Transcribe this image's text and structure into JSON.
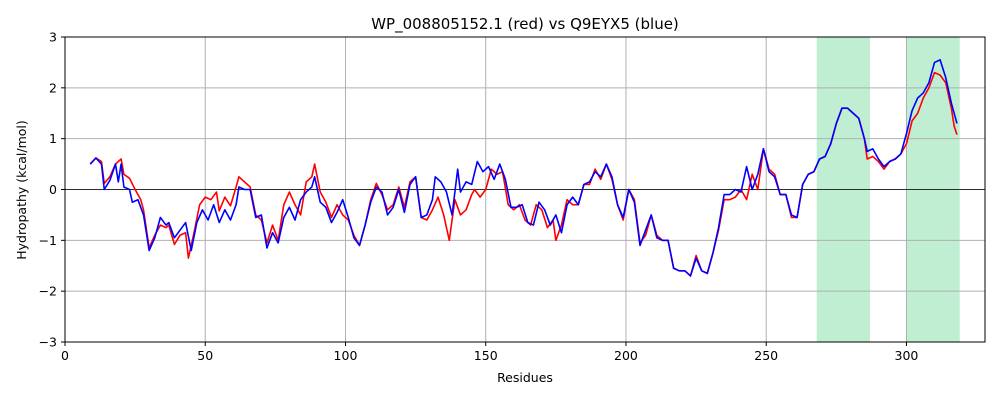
{
  "chart_data": {
    "type": "line",
    "title": "WP_008805152.1 (red) vs Q9EYX5 (blue)",
    "xlabel": "Residues",
    "ylabel": "Hydropathy (kcal/mol)",
    "xlim": [
      0,
      328
    ],
    "ylim": [
      -3,
      3
    ],
    "xticks": [
      0,
      50,
      100,
      150,
      200,
      250,
      300
    ],
    "yticks": [
      -3,
      -2,
      -1,
      0,
      1,
      2,
      3
    ],
    "grid": true,
    "zero_line": true,
    "colors": {
      "red": "#ff0000",
      "blue": "#0000ff",
      "highlight": "#c0eed3",
      "grid": "#b0b0b0"
    },
    "highlights": [
      {
        "x0": 268,
        "x1": 287
      },
      {
        "x0": 300,
        "x1": 319
      }
    ],
    "series": [
      {
        "color": "#ff0000",
        "points": [
          [
            9,
            0.5
          ],
          [
            11,
            0.62
          ],
          [
            13,
            0.55
          ],
          [
            14,
            0.12
          ],
          [
            16,
            0.25
          ],
          [
            18,
            0.5
          ],
          [
            20,
            0.6
          ],
          [
            21,
            0.3
          ],
          [
            23,
            0.22
          ],
          [
            25,
            0.0
          ],
          [
            27,
            -0.2
          ],
          [
            28,
            -0.4
          ],
          [
            30,
            -1.15
          ],
          [
            32,
            -0.9
          ],
          [
            34,
            -0.7
          ],
          [
            36,
            -0.75
          ],
          [
            37,
            -0.7
          ],
          [
            39,
            -1.08
          ],
          [
            41,
            -0.9
          ],
          [
            43,
            -0.85
          ],
          [
            44,
            -1.35
          ],
          [
            46,
            -0.85
          ],
          [
            48,
            -0.3
          ],
          [
            50,
            -0.15
          ],
          [
            52,
            -0.2
          ],
          [
            54,
            -0.05
          ],
          [
            55,
            -0.42
          ],
          [
            57,
            -0.15
          ],
          [
            59,
            -0.32
          ],
          [
            61,
            0.05
          ],
          [
            62,
            0.25
          ],
          [
            64,
            0.15
          ],
          [
            66,
            0.05
          ],
          [
            68,
            -0.5
          ],
          [
            70,
            -0.6
          ],
          [
            72,
            -1.05
          ],
          [
            74,
            -0.7
          ],
          [
            76,
            -1.0
          ],
          [
            78,
            -0.3
          ],
          [
            80,
            -0.05
          ],
          [
            82,
            -0.3
          ],
          [
            84,
            -0.5
          ],
          [
            86,
            0.15
          ],
          [
            88,
            0.25
          ],
          [
            89,
            0.5
          ],
          [
            91,
            -0.05
          ],
          [
            93,
            -0.25
          ],
          [
            95,
            -0.55
          ],
          [
            97,
            -0.3
          ],
          [
            99,
            -0.5
          ],
          [
            101,
            -0.6
          ],
          [
            103,
            -0.9
          ],
          [
            105,
            -1.1
          ],
          [
            107,
            -0.7
          ],
          [
            109,
            -0.2
          ],
          [
            111,
            0.12
          ],
          [
            113,
            -0.1
          ],
          [
            115,
            -0.4
          ],
          [
            117,
            -0.3
          ],
          [
            119,
            0.05
          ],
          [
            121,
            -0.35
          ],
          [
            123,
            0.15
          ],
          [
            125,
            0.25
          ],
          [
            127,
            -0.55
          ],
          [
            129,
            -0.6
          ],
          [
            131,
            -0.4
          ],
          [
            133,
            -0.15
          ],
          [
            135,
            -0.5
          ],
          [
            137,
            -1.0
          ],
          [
            139,
            -0.2
          ],
          [
            141,
            -0.5
          ],
          [
            143,
            -0.4
          ],
          [
            145,
            -0.1
          ],
          [
            146,
            0.0
          ],
          [
            148,
            -0.15
          ],
          [
            150,
            0.0
          ],
          [
            152,
            0.4
          ],
          [
            154,
            0.3
          ],
          [
            156,
            0.35
          ],
          [
            158,
            -0.3
          ],
          [
            160,
            -0.4
          ],
          [
            162,
            -0.3
          ],
          [
            164,
            -0.6
          ],
          [
            166,
            -0.7
          ],
          [
            168,
            -0.3
          ],
          [
            170,
            -0.4
          ],
          [
            172,
            -0.75
          ],
          [
            174,
            -0.6
          ],
          [
            175,
            -1.0
          ],
          [
            177,
            -0.7
          ],
          [
            179,
            -0.2
          ],
          [
            181,
            -0.3
          ],
          [
            183,
            -0.3
          ],
          [
            185,
            0.1
          ],
          [
            187,
            0.1
          ],
          [
            189,
            0.4
          ],
          [
            191,
            0.2
          ],
          [
            193,
            0.5
          ],
          [
            195,
            0.2
          ],
          [
            197,
            -0.3
          ],
          [
            199,
            -0.6
          ],
          [
            201,
            0.0
          ],
          [
            203,
            -0.2
          ],
          [
            205,
            -1.05
          ],
          [
            207,
            -0.9
          ],
          [
            209,
            -0.5
          ],
          [
            211,
            -0.9
          ],
          [
            213,
            -1.0
          ],
          [
            215,
            -1.0
          ],
          [
            217,
            -1.55
          ],
          [
            219,
            -1.6
          ],
          [
            221,
            -1.6
          ],
          [
            223,
            -1.7
          ],
          [
            225,
            -1.3
          ],
          [
            227,
            -1.6
          ],
          [
            229,
            -1.65
          ],
          [
            231,
            -1.25
          ],
          [
            233,
            -0.8
          ],
          [
            235,
            -0.2
          ],
          [
            237,
            -0.2
          ],
          [
            239,
            -0.15
          ],
          [
            241,
            0.0
          ],
          [
            243,
            -0.2
          ],
          [
            245,
            0.3
          ],
          [
            247,
            0.0
          ],
          [
            249,
            0.8
          ],
          [
            251,
            0.4
          ],
          [
            253,
            0.3
          ],
          [
            255,
            -0.1
          ],
          [
            257,
            -0.1
          ],
          [
            259,
            -0.55
          ],
          [
            261,
            -0.55
          ],
          [
            263,
            0.1
          ],
          [
            265,
            0.3
          ],
          [
            267,
            0.35
          ],
          [
            269,
            0.6
          ],
          [
            271,
            0.65
          ],
          [
            273,
            0.9
          ],
          [
            275,
            1.3
          ],
          [
            277,
            1.6
          ],
          [
            279,
            1.6
          ],
          [
            281,
            1.5
          ],
          [
            283,
            1.4
          ],
          [
            285,
            1.0
          ],
          [
            286,
            0.6
          ],
          [
            288,
            0.65
          ],
          [
            290,
            0.55
          ],
          [
            292,
            0.4
          ],
          [
            294,
            0.55
          ],
          [
            296,
            0.6
          ],
          [
            298,
            0.7
          ],
          [
            300,
            0.9
          ],
          [
            302,
            1.35
          ],
          [
            304,
            1.5
          ],
          [
            306,
            1.8
          ],
          [
            308,
            2.0
          ],
          [
            310,
            2.3
          ],
          [
            312,
            2.25
          ],
          [
            314,
            2.1
          ],
          [
            316,
            1.6
          ],
          [
            317,
            1.25
          ],
          [
            318,
            1.08
          ]
        ]
      },
      {
        "color": "#0000ff",
        "points": [
          [
            9,
            0.5
          ],
          [
            11,
            0.62
          ],
          [
            13,
            0.5
          ],
          [
            14,
            0.0
          ],
          [
            16,
            0.18
          ],
          [
            18,
            0.5
          ],
          [
            19,
            0.15
          ],
          [
            20,
            0.5
          ],
          [
            21,
            0.05
          ],
          [
            23,
            0.0
          ],
          [
            24,
            -0.25
          ],
          [
            26,
            -0.2
          ],
          [
            28,
            -0.5
          ],
          [
            30,
            -1.2
          ],
          [
            32,
            -0.95
          ],
          [
            34,
            -0.55
          ],
          [
            36,
            -0.7
          ],
          [
            37,
            -0.65
          ],
          [
            39,
            -0.95
          ],
          [
            41,
            -0.8
          ],
          [
            43,
            -0.65
          ],
          [
            45,
            -1.2
          ],
          [
            47,
            -0.65
          ],
          [
            49,
            -0.4
          ],
          [
            51,
            -0.6
          ],
          [
            53,
            -0.3
          ],
          [
            55,
            -0.65
          ],
          [
            57,
            -0.4
          ],
          [
            59,
            -0.6
          ],
          [
            61,
            -0.3
          ],
          [
            62,
            0.05
          ],
          [
            64,
            0.0
          ],
          [
            66,
            0.0
          ],
          [
            68,
            -0.55
          ],
          [
            70,
            -0.5
          ],
          [
            72,
            -1.15
          ],
          [
            74,
            -0.85
          ],
          [
            76,
            -1.05
          ],
          [
            78,
            -0.55
          ],
          [
            80,
            -0.35
          ],
          [
            82,
            -0.6
          ],
          [
            84,
            -0.2
          ],
          [
            86,
            -0.05
          ],
          [
            88,
            0.05
          ],
          [
            89,
            0.25
          ],
          [
            91,
            -0.25
          ],
          [
            93,
            -0.35
          ],
          [
            95,
            -0.65
          ],
          [
            97,
            -0.45
          ],
          [
            99,
            -0.2
          ],
          [
            101,
            -0.55
          ],
          [
            103,
            -0.95
          ],
          [
            105,
            -1.1
          ],
          [
            107,
            -0.7
          ],
          [
            109,
            -0.25
          ],
          [
            111,
            0.05
          ],
          [
            113,
            -0.05
          ],
          [
            115,
            -0.5
          ],
          [
            117,
            -0.35
          ],
          [
            119,
            0.0
          ],
          [
            121,
            -0.45
          ],
          [
            123,
            0.1
          ],
          [
            125,
            0.25
          ],
          [
            127,
            -0.55
          ],
          [
            129,
            -0.5
          ],
          [
            131,
            -0.2
          ],
          [
            132,
            0.25
          ],
          [
            134,
            0.15
          ],
          [
            136,
            -0.05
          ],
          [
            138,
            -0.5
          ],
          [
            140,
            0.4
          ],
          [
            141,
            -0.05
          ],
          [
            143,
            0.15
          ],
          [
            145,
            0.1
          ],
          [
            147,
            0.55
          ],
          [
            149,
            0.35
          ],
          [
            151,
            0.45
          ],
          [
            153,
            0.2
          ],
          [
            155,
            0.5
          ],
          [
            157,
            0.2
          ],
          [
            159,
            -0.35
          ],
          [
            161,
            -0.35
          ],
          [
            163,
            -0.3
          ],
          [
            165,
            -0.65
          ],
          [
            167,
            -0.7
          ],
          [
            169,
            -0.25
          ],
          [
            171,
            -0.4
          ],
          [
            173,
            -0.7
          ],
          [
            175,
            -0.5
          ],
          [
            177,
            -0.85
          ],
          [
            179,
            -0.3
          ],
          [
            181,
            -0.15
          ],
          [
            183,
            -0.3
          ],
          [
            185,
            0.1
          ],
          [
            187,
            0.15
          ],
          [
            189,
            0.35
          ],
          [
            191,
            0.25
          ],
          [
            193,
            0.5
          ],
          [
            195,
            0.25
          ],
          [
            197,
            -0.3
          ],
          [
            199,
            -0.55
          ],
          [
            201,
            0.0
          ],
          [
            203,
            -0.25
          ],
          [
            205,
            -1.1
          ],
          [
            207,
            -0.8
          ],
          [
            209,
            -0.5
          ],
          [
            211,
            -0.95
          ],
          [
            213,
            -1.0
          ],
          [
            215,
            -1.0
          ],
          [
            217,
            -1.55
          ],
          [
            219,
            -1.6
          ],
          [
            221,
            -1.6
          ],
          [
            223,
            -1.7
          ],
          [
            225,
            -1.35
          ],
          [
            227,
            -1.6
          ],
          [
            229,
            -1.65
          ],
          [
            231,
            -1.25
          ],
          [
            233,
            -0.75
          ],
          [
            235,
            -0.1
          ],
          [
            237,
            -0.1
          ],
          [
            239,
            0.0
          ],
          [
            241,
            -0.05
          ],
          [
            243,
            0.45
          ],
          [
            245,
            0.0
          ],
          [
            247,
            0.3
          ],
          [
            249,
            0.8
          ],
          [
            251,
            0.35
          ],
          [
            253,
            0.25
          ],
          [
            255,
            -0.1
          ],
          [
            257,
            -0.1
          ],
          [
            259,
            -0.5
          ],
          [
            261,
            -0.55
          ],
          [
            263,
            0.1
          ],
          [
            265,
            0.3
          ],
          [
            267,
            0.35
          ],
          [
            269,
            0.6
          ],
          [
            271,
            0.65
          ],
          [
            273,
            0.9
          ],
          [
            275,
            1.3
          ],
          [
            277,
            1.6
          ],
          [
            279,
            1.6
          ],
          [
            281,
            1.5
          ],
          [
            283,
            1.4
          ],
          [
            285,
            1.0
          ],
          [
            286,
            0.75
          ],
          [
            288,
            0.8
          ],
          [
            290,
            0.6
          ],
          [
            292,
            0.45
          ],
          [
            294,
            0.55
          ],
          [
            296,
            0.6
          ],
          [
            298,
            0.7
          ],
          [
            300,
            1.1
          ],
          [
            302,
            1.55
          ],
          [
            304,
            1.8
          ],
          [
            306,
            1.9
          ],
          [
            308,
            2.1
          ],
          [
            310,
            2.5
          ],
          [
            312,
            2.55
          ],
          [
            314,
            2.2
          ],
          [
            316,
            1.7
          ],
          [
            318,
            1.3
          ]
        ]
      }
    ]
  }
}
